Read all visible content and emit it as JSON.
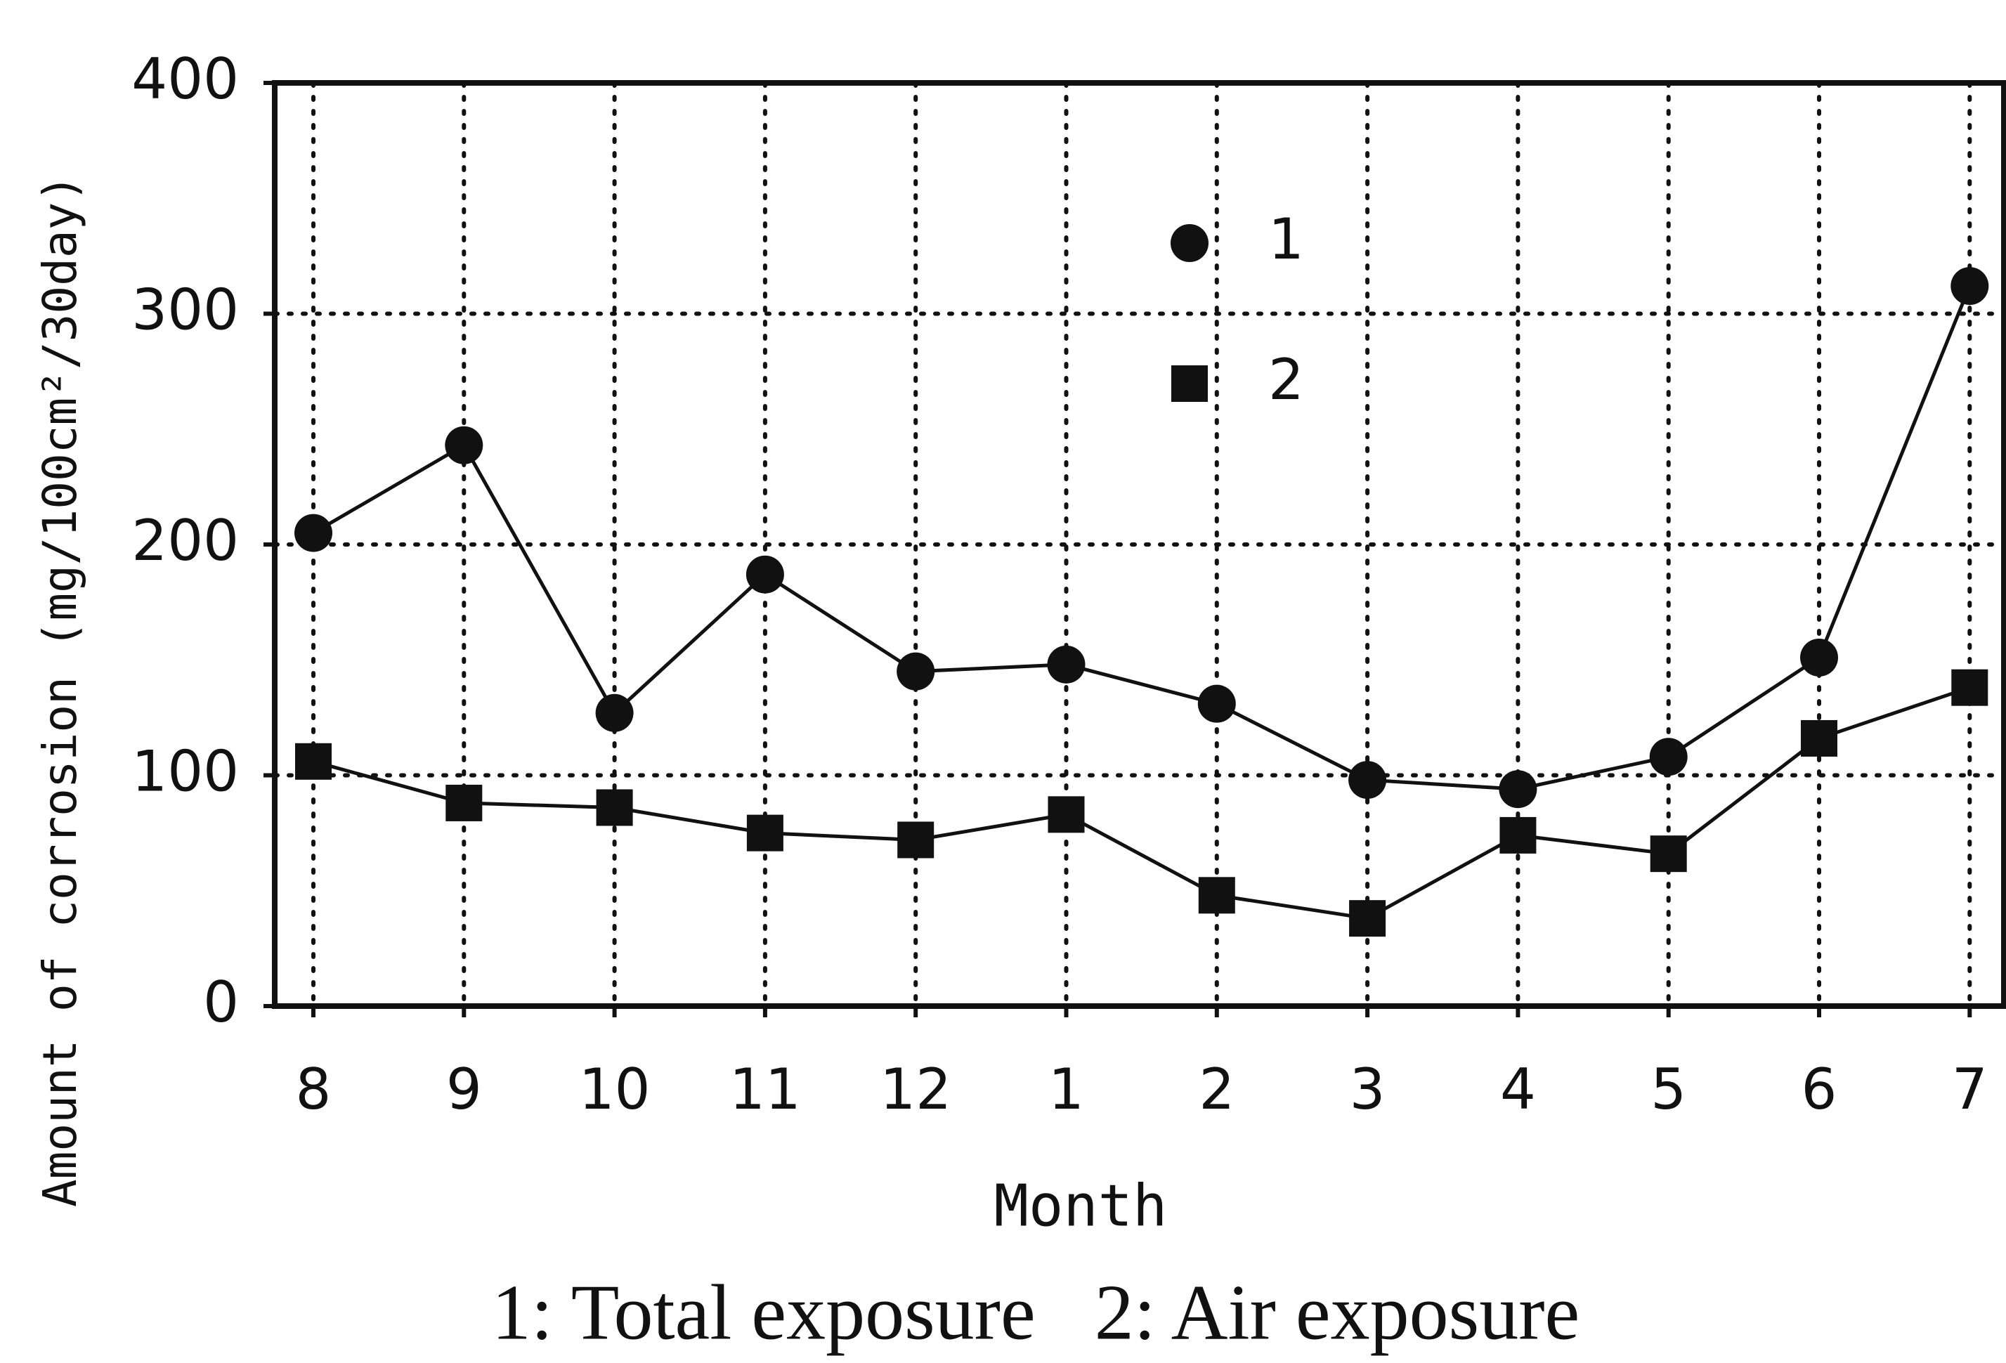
{
  "chart_data": {
    "type": "line",
    "y_label": "Amount of corrosion (mg/100cm²/30day)",
    "x_label": "Month",
    "annotation": "1: Total exposure   2: Air exposure",
    "categories": [
      "8",
      "9",
      "10",
      "11",
      "12",
      "1",
      "2",
      "3",
      "4",
      "5",
      "6",
      "7"
    ],
    "series": [
      {
        "name": "1",
        "color": "#111111",
        "marker": "circle",
        "values": [
          205,
          243,
          127,
          187,
          145,
          148,
          131,
          98,
          94,
          108,
          151,
          312
        ]
      },
      {
        "name": "2",
        "color": "#111111",
        "marker": "square",
        "values": [
          106,
          88,
          86,
          75,
          72,
          83,
          48,
          38,
          74,
          66,
          116,
          138
        ]
      }
    ],
    "ylim": [
      0,
      400
    ],
    "yticks": [
      0,
      100,
      200,
      300,
      400
    ],
    "grid": true
  }
}
